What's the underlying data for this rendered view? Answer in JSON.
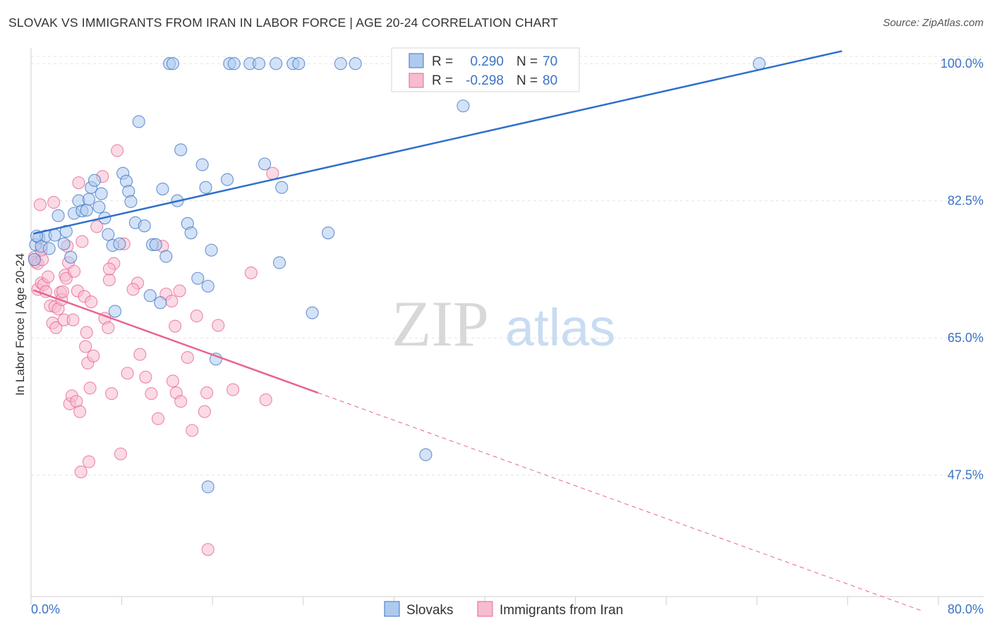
{
  "title": "SLOVAK VS IMMIGRANTS FROM IRAN IN LABOR FORCE | AGE 20-24 CORRELATION CHART",
  "source": "Source: ZipAtlas.com",
  "watermark": {
    "zip": "ZIP",
    "atlas": "atlas"
  },
  "colors": {
    "blue": "#3b73c4",
    "blue_fill": "#aecbee",
    "blue_line": "#2e6fcc",
    "pink": "#e8648e",
    "pink_fill": "#f6bccf"
  },
  "legend": {
    "r_label": "R =",
    "n_label": "N =",
    "series": [
      {
        "r": "0.290",
        "n": "70"
      },
      {
        "r": "-0.298",
        "n": "80"
      }
    ]
  },
  "chart_data": {
    "type": "scatter",
    "title": "SLOVAK VS IMMIGRANTS FROM IRAN IN LABOR FORCE | AGE 20-24 CORRELATION CHART",
    "xlabel": "",
    "ylabel": "In Labor Force | Age 20-24",
    "xlim": [
      0,
      80
    ],
    "ylim": [
      32,
      102
    ],
    "x_tick_labels": [
      "0.0%",
      "80.0%"
    ],
    "y_ticks": [
      47.5,
      65.0,
      82.5,
      100.0
    ],
    "y_tick_labels": [
      "47.5%",
      "65.0%",
      "82.5%",
      "100.0%"
    ],
    "grid": true,
    "legend_position": "top-center",
    "series": [
      {
        "name": "Slovaks",
        "color": "#3b73c4",
        "trend": {
          "x": [
            0.2,
            71.5
          ],
          "y": [
            78.3,
            101.6
          ]
        },
        "points": [
          [
            0.3,
            75.0
          ],
          [
            0.4,
            76.9
          ],
          [
            0.7,
            77.8
          ],
          [
            0.9,
            76.7
          ],
          [
            1.3,
            78.0
          ],
          [
            1.6,
            76.4
          ],
          [
            2.1,
            78.1
          ],
          [
            2.4,
            80.6
          ],
          [
            2.9,
            77.0
          ],
          [
            3.1,
            78.6
          ],
          [
            3.5,
            75.3
          ],
          [
            3.8,
            80.9
          ],
          [
            4.2,
            82.5
          ],
          [
            4.5,
            81.2
          ],
          [
            4.9,
            81.3
          ],
          [
            5.1,
            82.7
          ],
          [
            5.3,
            84.2
          ],
          [
            5.6,
            85.1
          ],
          [
            6.0,
            81.7
          ],
          [
            6.2,
            83.4
          ],
          [
            6.5,
            80.3
          ],
          [
            6.8,
            78.2
          ],
          [
            7.2,
            76.8
          ],
          [
            7.4,
            68.4
          ],
          [
            7.8,
            77.0
          ],
          [
            8.1,
            86.0
          ],
          [
            8.4,
            85.0
          ],
          [
            8.6,
            83.7
          ],
          [
            8.8,
            82.4
          ],
          [
            9.2,
            79.7
          ],
          [
            9.5,
            92.6
          ],
          [
            10.0,
            79.3
          ],
          [
            10.5,
            70.4
          ],
          [
            10.7,
            76.9
          ],
          [
            11.0,
            76.9
          ],
          [
            11.4,
            69.5
          ],
          [
            11.6,
            84.0
          ],
          [
            11.9,
            75.4
          ],
          [
            12.2,
            100.0
          ],
          [
            12.5,
            100.0
          ],
          [
            12.9,
            82.5
          ],
          [
            13.2,
            89.0
          ],
          [
            13.8,
            79.6
          ],
          [
            14.1,
            78.4
          ],
          [
            14.7,
            72.6
          ],
          [
            15.1,
            87.1
          ],
          [
            15.4,
            84.2
          ],
          [
            15.6,
            71.6
          ],
          [
            15.9,
            76.2
          ],
          [
            15.6,
            46.0
          ],
          [
            16.3,
            62.3
          ],
          [
            17.3,
            85.2
          ],
          [
            17.5,
            100.0
          ],
          [
            17.9,
            100.0
          ],
          [
            19.3,
            100.0
          ],
          [
            20.1,
            100.0
          ],
          [
            20.6,
            87.2
          ],
          [
            21.6,
            100.0
          ],
          [
            21.9,
            74.6
          ],
          [
            22.1,
            84.2
          ],
          [
            23.1,
            100.0
          ],
          [
            23.6,
            100.0
          ],
          [
            24.8,
            68.2
          ],
          [
            26.2,
            78.4
          ],
          [
            27.3,
            100.0
          ],
          [
            28.6,
            100.0
          ],
          [
            38.1,
            94.6
          ],
          [
            34.8,
            50.1
          ],
          [
            64.2,
            100.0
          ],
          [
            0.5,
            78.0
          ]
        ]
      },
      {
        "name": "Immigrants from Iran",
        "color": "#e8648e",
        "trend": {
          "x": [
            0.2,
            25.3
          ],
          "y": [
            71.1,
            58.0
          ]
        },
        "trend_dashed": {
          "x": [
            25.3,
            78.5
          ],
          "y": [
            58.0,
            30.2
          ]
        },
        "points": [
          [
            0.3,
            75.3
          ],
          [
            0.4,
            74.7
          ],
          [
            0.6,
            74.5
          ],
          [
            0.6,
            71.2
          ],
          [
            0.9,
            72.0
          ],
          [
            1.1,
            71.8
          ],
          [
            1.3,
            70.9
          ],
          [
            1.5,
            72.8
          ],
          [
            1.7,
            69.1
          ],
          [
            1.9,
            66.9
          ],
          [
            2.1,
            69.0
          ],
          [
            2.2,
            66.3
          ],
          [
            2.4,
            68.7
          ],
          [
            2.6,
            70.8
          ],
          [
            2.7,
            69.9
          ],
          [
            2.9,
            67.3
          ],
          [
            3.0,
            73.0
          ],
          [
            3.1,
            72.6
          ],
          [
            3.3,
            74.6
          ],
          [
            3.4,
            56.6
          ],
          [
            3.6,
            57.6
          ],
          [
            3.7,
            67.3
          ],
          [
            3.8,
            73.5
          ],
          [
            4.0,
            56.9
          ],
          [
            4.1,
            71.0
          ],
          [
            4.2,
            84.8
          ],
          [
            4.3,
            55.6
          ],
          [
            4.4,
            47.9
          ],
          [
            4.5,
            77.3
          ],
          [
            4.7,
            70.3
          ],
          [
            4.8,
            63.9
          ],
          [
            4.9,
            65.7
          ],
          [
            5.0,
            61.8
          ],
          [
            5.1,
            49.2
          ],
          [
            5.2,
            58.6
          ],
          [
            5.3,
            69.6
          ],
          [
            5.5,
            62.7
          ],
          [
            5.8,
            79.2
          ],
          [
            6.3,
            85.6
          ],
          [
            6.5,
            67.5
          ],
          [
            6.8,
            66.3
          ],
          [
            6.9,
            72.4
          ],
          [
            7.1,
            57.9
          ],
          [
            7.3,
            74.5
          ],
          [
            7.6,
            88.9
          ],
          [
            7.9,
            50.2
          ],
          [
            8.2,
            77.0
          ],
          [
            8.5,
            60.5
          ],
          [
            9.4,
            72.0
          ],
          [
            9.6,
            62.9
          ],
          [
            10.1,
            60.0
          ],
          [
            10.6,
            57.9
          ],
          [
            11.2,
            54.7
          ],
          [
            11.9,
            70.6
          ],
          [
            12.4,
            69.7
          ],
          [
            12.7,
            66.5
          ],
          [
            12.8,
            58.0
          ],
          [
            13.2,
            56.9
          ],
          [
            13.8,
            62.5
          ],
          [
            14.2,
            53.2
          ],
          [
            14.6,
            67.8
          ],
          [
            15.3,
            55.6
          ],
          [
            15.5,
            58.0
          ],
          [
            15.6,
            38.0
          ],
          [
            16.5,
            66.6
          ],
          [
            17.8,
            58.4
          ],
          [
            19.4,
            73.3
          ],
          [
            20.7,
            57.1
          ],
          [
            21.3,
            86.0
          ],
          [
            0.8,
            82.0
          ],
          [
            1.0,
            75.0
          ],
          [
            2.8,
            70.9
          ],
          [
            3.2,
            76.7
          ],
          [
            6.9,
            73.8
          ],
          [
            9.0,
            71.2
          ],
          [
            11.6,
            76.7
          ],
          [
            12.5,
            59.5
          ],
          [
            13.1,
            71.0
          ],
          [
            0.9,
            76.2
          ],
          [
            2.0,
            82.3
          ]
        ]
      }
    ]
  },
  "axis": {
    "x_left": "0.0%",
    "x_right": "80.0%",
    "ylabel": "In Labor Force | Age 20-24"
  }
}
